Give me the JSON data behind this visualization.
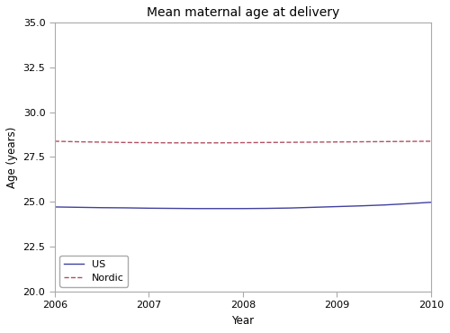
{
  "title": "Mean maternal age at delivery",
  "xlabel": "Year",
  "ylabel": "Age (years)",
  "ylim": [
    20.0,
    35.0
  ],
  "xlim": [
    2006,
    2010
  ],
  "yticks": [
    20.0,
    22.5,
    25.0,
    27.5,
    30.0,
    32.5,
    35.0
  ],
  "xticks": [
    2006,
    2007,
    2008,
    2009,
    2010
  ],
  "us": {
    "x": [
      2006,
      2006.25,
      2006.5,
      2006.75,
      2007,
      2007.25,
      2007.5,
      2007.75,
      2008,
      2008.25,
      2008.5,
      2008.75,
      2009,
      2009.25,
      2009.5,
      2009.75,
      2010
    ],
    "y": [
      24.72,
      24.7,
      24.68,
      24.67,
      24.65,
      24.64,
      24.63,
      24.63,
      24.63,
      24.64,
      24.66,
      24.7,
      24.74,
      24.78,
      24.83,
      24.9,
      24.98
    ],
    "color": "#4040a0",
    "linestyle": "solid",
    "linewidth": 1.0,
    "label": "US"
  },
  "nordic": {
    "x": [
      2006,
      2006.25,
      2006.5,
      2006.75,
      2007,
      2007.25,
      2007.5,
      2007.75,
      2008,
      2008.25,
      2008.5,
      2008.75,
      2009,
      2009.25,
      2009.5,
      2009.75,
      2010
    ],
    "y": [
      28.38,
      28.35,
      28.33,
      28.31,
      28.3,
      28.29,
      28.29,
      28.29,
      28.3,
      28.31,
      28.32,
      28.33,
      28.34,
      28.35,
      28.36,
      28.37,
      28.38
    ],
    "color": "#b05060",
    "linestyle": "dashed",
    "linewidth": 1.0,
    "label": "Nordic"
  },
  "legend_loc": "lower left",
  "background_color": "#ffffff",
  "spine_color": "#aaaaaa",
  "title_fontsize": 10,
  "label_fontsize": 8.5,
  "tick_fontsize": 8
}
